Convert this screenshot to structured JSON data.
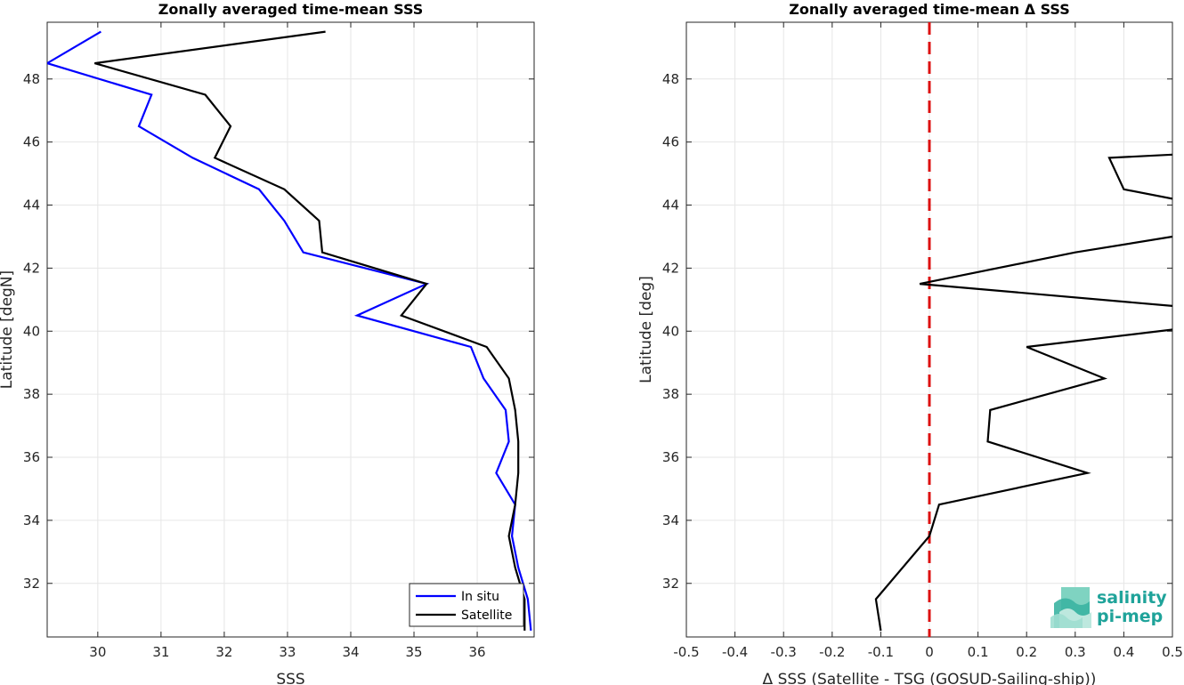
{
  "chart_data": [
    {
      "type": "line",
      "title": "Zonally averaged time-mean SSS",
      "xlabel": "SSS",
      "ylabel": "Latitude [degN]",
      "xlim": [
        29.2,
        36.9
      ],
      "ylim": [
        30.3,
        49.8
      ],
      "xticks": [
        30,
        31,
        32,
        33,
        34,
        35,
        36
      ],
      "yticks": [
        32,
        34,
        36,
        38,
        40,
        42,
        44,
        46,
        48
      ],
      "grid": true,
      "legend": "bottom-right",
      "series": [
        {
          "name": "In situ",
          "color": "#0000ff",
          "points": [
            [
              30.05,
              49.5
            ],
            [
              29.2,
              48.5
            ],
            [
              30.85,
              47.5
            ],
            [
              30.65,
              46.5
            ],
            [
              31.5,
              45.5
            ],
            [
              32.55,
              44.5
            ],
            [
              32.95,
              43.5
            ],
            [
              33.25,
              42.5
            ],
            [
              35.2,
              41.5
            ],
            [
              34.1,
              40.5
            ],
            [
              35.9,
              39.5
            ],
            [
              36.1,
              38.5
            ],
            [
              36.45,
              37.5
            ],
            [
              36.5,
              36.5
            ],
            [
              36.3,
              35.5
            ],
            [
              36.6,
              34.5
            ],
            [
              36.55,
              33.5
            ],
            [
              36.65,
              32.5
            ],
            [
              36.8,
              31.5
            ],
            [
              36.85,
              30.5
            ]
          ]
        },
        {
          "name": "Satellite",
          "color": "#000000",
          "points": [
            [
              33.6,
              49.5
            ],
            [
              29.95,
              48.5
            ],
            [
              31.7,
              47.5
            ],
            [
              32.1,
              46.5
            ],
            [
              31.85,
              45.5
            ],
            [
              32.95,
              44.5
            ],
            [
              33.5,
              43.5
            ],
            [
              33.55,
              42.5
            ],
            [
              35.2,
              41.5
            ],
            [
              34.8,
              40.5
            ],
            [
              36.15,
              39.5
            ],
            [
              36.5,
              38.5
            ],
            [
              36.6,
              37.5
            ],
            [
              36.65,
              36.5
            ],
            [
              36.65,
              35.5
            ],
            [
              36.6,
              34.5
            ],
            [
              36.5,
              33.5
            ],
            [
              36.6,
              32.5
            ],
            [
              36.75,
              31.5
            ],
            [
              36.75,
              30.5
            ]
          ]
        }
      ]
    },
    {
      "type": "line",
      "title": "Zonally averaged time-mean Δ SSS",
      "xlabel": "Δ SSS (Satellite - TSG (GOSUD-Sailing-ship))",
      "ylabel": "Latitude [deg]",
      "xlim": [
        -0.5,
        0.5
      ],
      "ylim": [
        30.3,
        49.8
      ],
      "xticks": [
        -0.5,
        -0.4,
        -0.3,
        -0.2,
        -0.1,
        0,
        0.1,
        0.2,
        0.3,
        0.4,
        0.5
      ],
      "xticklabels": [
        "-0.5",
        "-0.4",
        "-0.3",
        "-0.2",
        "-0.1",
        "0",
        "0.1",
        "0.2",
        "0.3",
        "0.4",
        "0.5"
      ],
      "yticks": [
        32,
        34,
        36,
        38,
        40,
        42,
        44,
        46,
        48
      ],
      "grid": true,
      "reference_line": {
        "x": 0,
        "color": "#dd1111",
        "style": "dashed"
      },
      "series": [
        {
          "color": "#000000",
          "points": [
            [
              0.5,
              45.6
            ],
            [
              0.37,
              45.5
            ],
            [
              0.4,
              44.5
            ],
            [
              0.5,
              44.2
            ],
            [
              null,
              null
            ],
            [
              0.5,
              43.0
            ],
            [
              0.3,
              42.5
            ],
            [
              -0.02,
              41.5
            ],
            [
              0.5,
              40.8
            ],
            [
              null,
              null
            ],
            [
              0.5,
              40.05
            ],
            [
              0.2,
              39.5
            ],
            [
              0.36,
              38.5
            ],
            [
              0.125,
              37.5
            ],
            [
              0.12,
              36.5
            ],
            [
              0.325,
              35.5
            ],
            [
              0.02,
              34.5
            ],
            [
              0.0,
              33.5
            ],
            [
              -0.11,
              31.5
            ],
            [
              -0.1,
              30.5
            ]
          ]
        }
      ]
    }
  ],
  "logo": {
    "line1": "salinity",
    "line2": "pi-mep",
    "color": "#1fa39a"
  }
}
